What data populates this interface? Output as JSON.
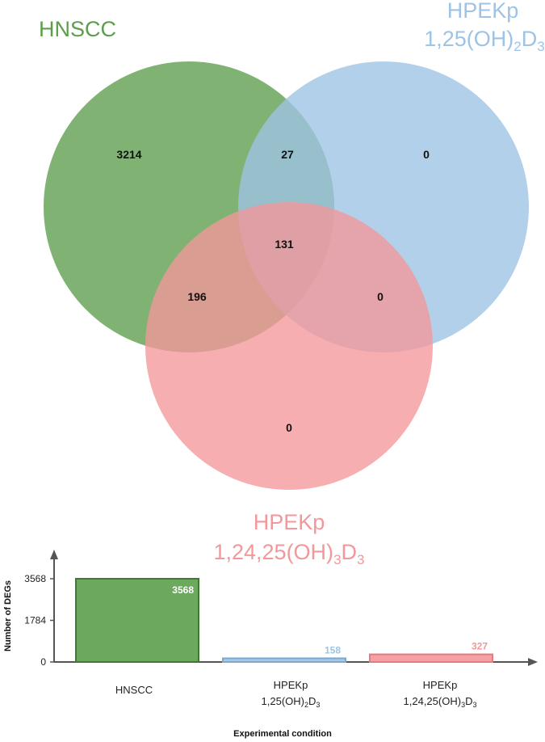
{
  "venn": {
    "sets": [
      {
        "id": "hnscc",
        "label_lines": [
          "HNSCC"
        ],
        "color": "#5c9e4c"
      },
      {
        "id": "dhd3",
        "label_lines": [
          "HPEKp",
          "1,25(OH)",
          "2",
          "D",
          "3"
        ],
        "color": "#9dc3e6"
      },
      {
        "id": "thd3",
        "label_lines": [
          "HPEKp",
          "1,24,25(OH)",
          "3",
          "D",
          "3"
        ],
        "color": "#f4979a"
      }
    ],
    "regions": {
      "hnscc_only": "3214",
      "hnscc_dhd3": "27",
      "dhd3_only": "0",
      "all_three": "131",
      "hnscc_thd3": "196",
      "dhd3_thd3": "0",
      "thd3_only": "0"
    }
  },
  "chart_data": {
    "type": "bar",
    "categories": [
      "HNSCC",
      "HPEKp 1,25(OH)2D3",
      "HPEKp 1,24,25(OH)3D3"
    ],
    "category_display": [
      [
        "HNSCC"
      ],
      [
        "HPEKp",
        "1,25(OH)",
        "2",
        "D",
        "3"
      ],
      [
        "HPEKp",
        "1,24,25(OH)",
        "3",
        "D",
        "3"
      ]
    ],
    "values": [
      3568,
      158,
      327
    ],
    "value_labels": [
      "3568",
      "158",
      "327"
    ],
    "bar_colors": [
      "#5c9e4c",
      "#9dc3e6",
      "#f4979a"
    ],
    "bar_edge_colors": [
      "#3f7a33",
      "#7fa8cf",
      "#e37c80"
    ],
    "label_colors": [
      "#ffffff",
      "#9dc3e6",
      "#f4979a"
    ],
    "xlabel": "Experimental condition",
    "ylabel": "Number of DEGs",
    "yticks": [
      "0",
      "1784",
      "3568"
    ],
    "ylim": [
      0,
      3568
    ]
  }
}
